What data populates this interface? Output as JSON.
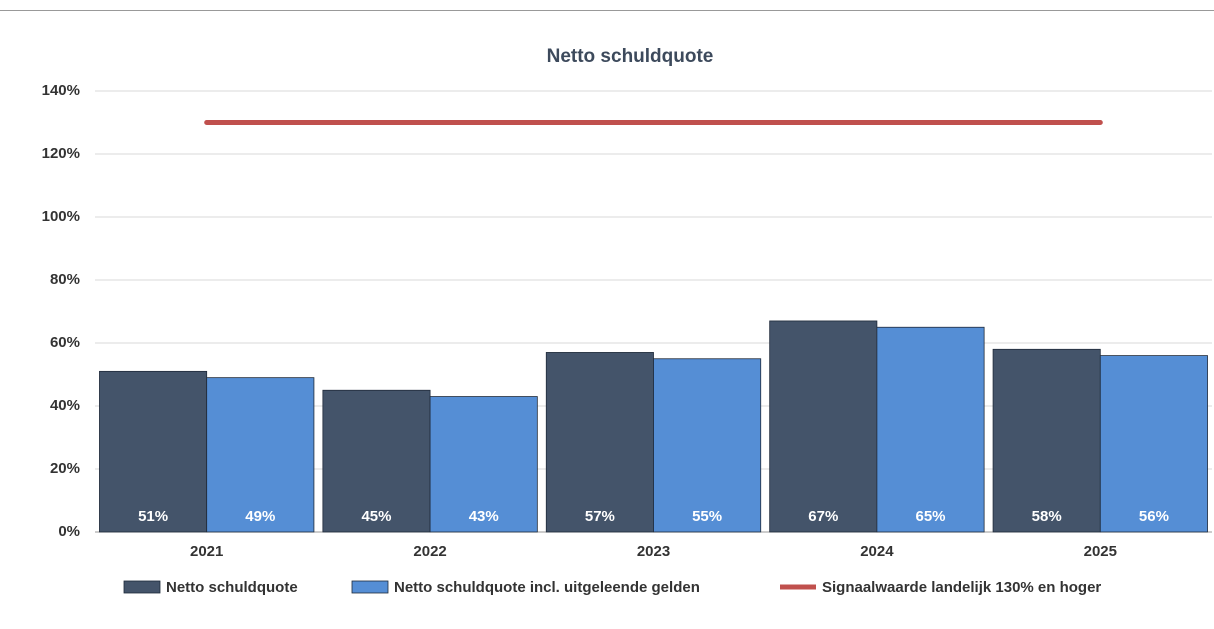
{
  "chart_data": {
    "type": "bar",
    "title": "Netto schuldquote",
    "categories": [
      "2021",
      "2022",
      "2023",
      "2024",
      "2025"
    ],
    "series": [
      {
        "name": "Netto schuldquote",
        "color": "#44546a",
        "values": [
          51,
          45,
          57,
          67,
          58
        ],
        "value_labels": [
          "51%",
          "45%",
          "57%",
          "67%",
          "58%"
        ]
      },
      {
        "name": "Netto schuldquote incl. uitgeleende gelden",
        "color": "#558ed5",
        "values": [
          49,
          43,
          55,
          65,
          56
        ],
        "value_labels": [
          "49%",
          "43%",
          "55%",
          "65%",
          "56%"
        ]
      },
      {
        "name": "Signaalwaarde landelijk 130% en hoger",
        "color": "#c0504d",
        "type": "line",
        "values": [
          130,
          130,
          130,
          130,
          130
        ]
      }
    ],
    "ylim": [
      0,
      140
    ],
    "yticks": [
      {
        "value": 0,
        "label": "0%"
      },
      {
        "value": 20,
        "label": "20%"
      },
      {
        "value": 40,
        "label": "40%"
      },
      {
        "value": 60,
        "label": "60%"
      },
      {
        "value": 80,
        "label": "80%"
      },
      {
        "value": 100,
        "label": "100%"
      },
      {
        "value": 120,
        "label": "120%"
      },
      {
        "value": 140,
        "label": "140%"
      }
    ],
    "grid": true
  }
}
